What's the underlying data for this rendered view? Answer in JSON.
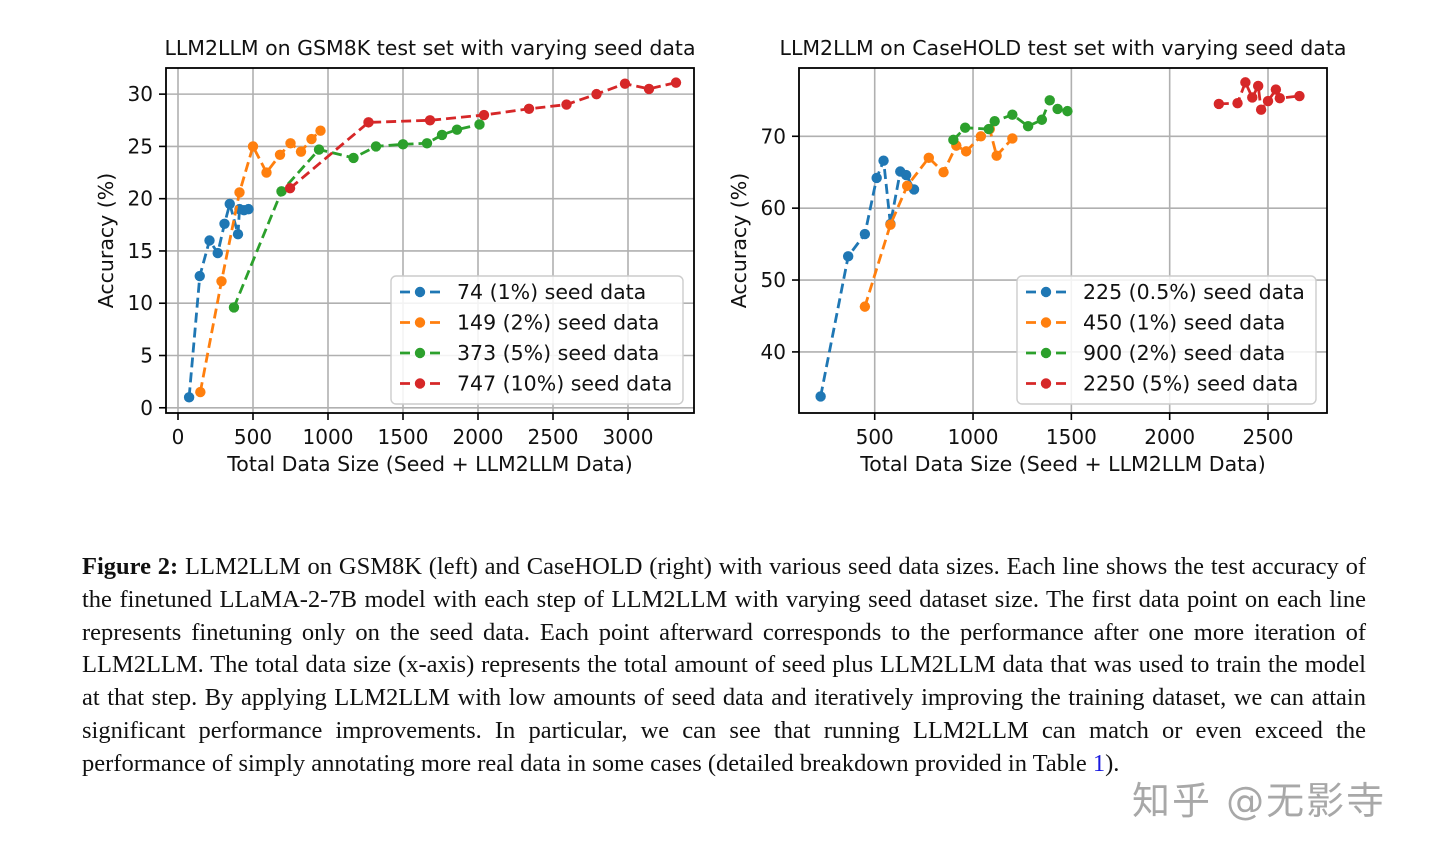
{
  "chart_data": [
    {
      "type": "line",
      "title": "LLM2LLM on GSM8K test set with varying seed data",
      "xlabel": "Total Data Size (Seed + LLM2LLM Data)",
      "ylabel": "Accuracy (%)",
      "xlim": [
        -80,
        3440
      ],
      "ylim": [
        -0.5,
        32.5
      ],
      "xticks": [
        0,
        500,
        1000,
        1500,
        2000,
        2500,
        3000
      ],
      "yticks": [
        0,
        5,
        10,
        15,
        20,
        25,
        30
      ],
      "grid": true,
      "legend_position": "lower-right",
      "series": [
        {
          "name": "74 (1%) seed data",
          "color": "#1f77b4",
          "x": [
            74,
            145,
            210,
            265,
            310,
            345,
            400,
            410,
            440,
            470
          ],
          "y": [
            1.0,
            12.6,
            16.0,
            14.8,
            17.6,
            19.5,
            16.6,
            19.0,
            18.9,
            19.0
          ]
        },
        {
          "name": "149 (2%) seed data",
          "color": "#ff7f0e",
          "x": [
            149,
            290,
            410,
            500,
            590,
            680,
            750,
            820,
            890,
            950
          ],
          "y": [
            1.5,
            12.1,
            20.6,
            25.0,
            22.5,
            24.2,
            25.3,
            24.5,
            25.7,
            26.5
          ]
        },
        {
          "name": "373 (5%) seed data",
          "color": "#2ca02c",
          "x": [
            373,
            690,
            940,
            1170,
            1320,
            1500,
            1660,
            1760,
            1860,
            2010
          ],
          "y": [
            9.6,
            20.7,
            24.7,
            23.9,
            25.0,
            25.2,
            25.3,
            26.1,
            26.6,
            27.1
          ]
        },
        {
          "name": "747 (10%) seed data",
          "color": "#d62728",
          "x": [
            747,
            1270,
            1680,
            2040,
            2340,
            2590,
            2790,
            2980,
            3140,
            3320
          ],
          "y": [
            21.0,
            27.3,
            27.5,
            28.0,
            28.6,
            29.0,
            30.0,
            31.0,
            30.5,
            31.1
          ]
        }
      ]
    },
    {
      "type": "line",
      "title": "LLM2LLM on CaseHOLD test set with varying seed data",
      "xlabel": "Total Data Size (Seed + LLM2LLM Data)",
      "ylabel": "Accuracy (%)",
      "xlim": [
        115,
        2800
      ],
      "ylim": [
        31.5,
        79.5
      ],
      "xticks": [
        500,
        1000,
        1500,
        2000,
        2500
      ],
      "yticks": [
        40,
        50,
        60,
        70
      ],
      "grid": true,
      "legend_position": "lower-right",
      "series": [
        {
          "name": "225 (0.5%) seed data",
          "color": "#1f77b4",
          "x": [
            225,
            365,
            450,
            510,
            545,
            580,
            630,
            660,
            700
          ],
          "y": [
            33.8,
            53.3,
            56.4,
            64.2,
            66.6,
            57.8,
            65.1,
            64.6,
            62.6
          ]
        },
        {
          "name": "450 (1%) seed data",
          "color": "#ff7f0e",
          "x": [
            450,
            580,
            665,
            775,
            850,
            915,
            965,
            1040,
            1085,
            1120,
            1200
          ],
          "y": [
            46.3,
            57.7,
            63.1,
            67.0,
            65.0,
            68.7,
            67.9,
            70.0,
            71.0,
            67.3,
            69.7
          ]
        },
        {
          "name": "900 (2%) seed data",
          "color": "#2ca02c",
          "x": [
            900,
            960,
            1080,
            1110,
            1200,
            1280,
            1350,
            1390,
            1430,
            1480
          ],
          "y": [
            69.5,
            71.2,
            71.0,
            72.1,
            73.0,
            71.4,
            72.3,
            75.0,
            73.8,
            73.5
          ]
        },
        {
          "name": "2250 (5%) seed data",
          "color": "#d62728",
          "x": [
            2250,
            2345,
            2385,
            2420,
            2450,
            2465,
            2500,
            2540,
            2560,
            2660
          ],
          "y": [
            74.5,
            74.6,
            77.5,
            75.4,
            77.0,
            73.7,
            74.9,
            76.5,
            75.3,
            75.6
          ]
        }
      ]
    }
  ],
  "caption": {
    "label": "Figure 2:",
    "text_before_ref": " LLM2LLM on GSM8K (left) and CaseHOLD (right) with various seed data sizes. Each line shows the test accuracy of the finetuned LLaMA-2-7B model with each step of LLM2LLM with varying seed dataset size. The first data point on each line represents finetuning only on the seed data. Each point afterward corresponds to the performance after one more iteration of LLM2LLM. The total data size (x-axis) represents the total amount of seed plus LLM2LLM data that was used to train the model at that step. By applying LLM2LLM with low amounts of seed data and iteratively improving the training dataset, we can attain significant performance improvements. In particular, we can see that running LLM2LLM can match or even exceed the performance of simply annotating more real data in some cases (detailed breakdown provided in Table ",
    "ref": "1",
    "text_after_ref": ")."
  },
  "watermark": "知乎 @无影寺"
}
